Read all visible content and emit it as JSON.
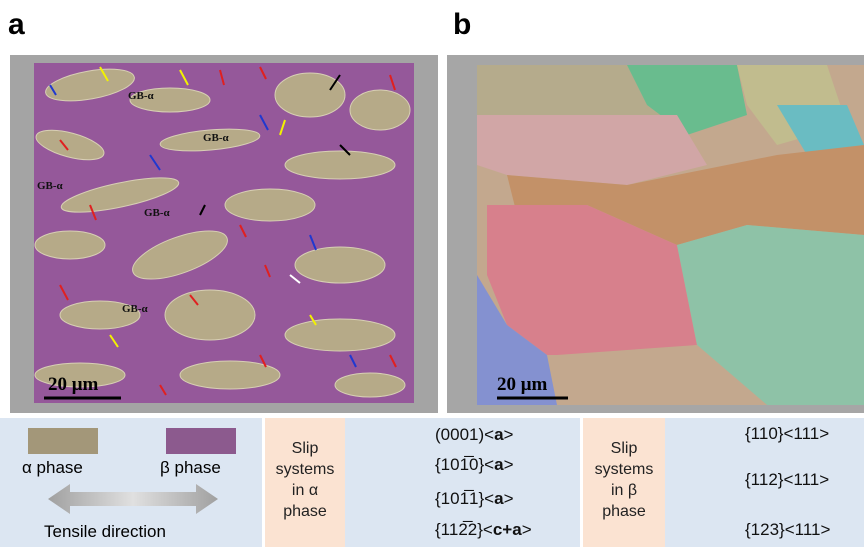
{
  "panels": [
    {
      "label": "a",
      "scale_bar": "20 μm",
      "annotations": [
        "GB-α",
        "GB-α",
        "GB-α",
        "GB-α",
        "GB-α"
      ]
    },
    {
      "label": "b",
      "scale_bar": "20 μm"
    }
  ],
  "legend": {
    "phases": [
      {
        "name": "α phase",
        "color": "#a39779"
      },
      {
        "name": "β phase",
        "color": "#8c5a8e"
      }
    ],
    "tensile": "Tensile direction",
    "alpha_slip": {
      "title": [
        "Slip",
        "systems",
        "in α",
        "phase"
      ],
      "items": [
        {
          "parts": [
            "(0001)<",
            "a",
            ">"
          ],
          "color": "#e04ce0"
        },
        {
          "parts": [
            "{101̅0}<",
            "a",
            ">"
          ],
          "color": "#000000"
        },
        {
          "parts": [
            "{101̅1}<",
            "a",
            ">"
          ],
          "color": "#2038d0"
        },
        {
          "parts": [
            "{112̅2}<",
            "c+a",
            ">"
          ],
          "color": "#e02020"
        }
      ]
    },
    "beta_slip": {
      "title": [
        "Slip",
        "systems",
        "in β",
        "phase"
      ],
      "items": [
        {
          "parts": [
            "{110}<111>"
          ],
          "color": "#f2f200"
        },
        {
          "parts": [
            "{112}<111>"
          ],
          "color": "#ffffff"
        },
        {
          "parts": [
            "{123}<111>"
          ],
          "color": "#8ea8d8"
        }
      ]
    }
  }
}
